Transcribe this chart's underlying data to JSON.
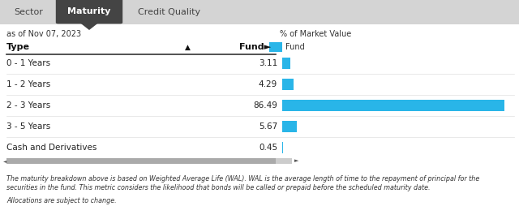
{
  "tab_labels": [
    "Sector",
    "Maturity",
    "Credit Quality"
  ],
  "active_tab": "Maturity",
  "date_label": "as of Nov 07, 2023",
  "percent_label": "% of Market Value",
  "col_type": "Type",
  "col_sort": "▲",
  "col_fund": "Fund►",
  "legend_label": "Fund",
  "categories": [
    "0 - 1 Years",
    "1 - 2 Years",
    "2 - 3 Years",
    "3 - 5 Years",
    "Cash and Derivatives"
  ],
  "values": [
    3.11,
    4.29,
    86.49,
    5.67,
    0.45
  ],
  "bar_color": "#29b5e8",
  "max_bar_value": 86.49,
  "tab_bg": "#d4d4d4",
  "active_tab_bg": "#444444",
  "active_tab_fg": "#ffffff",
  "tab_fg": "#444444",
  "footnote1": "The maturity breakdown above is based on Weighted Average Life (WAL). WAL is the average length of time to the repayment of principal for the",
  "footnote2": "securities in the fund. This metric considers the likelihood that bonds will be called or prepaid before the scheduled maturity date.",
  "footnote3": "Allocations are subject to change.",
  "scroll_bg": "#cccccc",
  "scroll_thumb": "#aaaaaa",
  "header_line_color": "#999999",
  "row_line_color": "#e0e0e0"
}
